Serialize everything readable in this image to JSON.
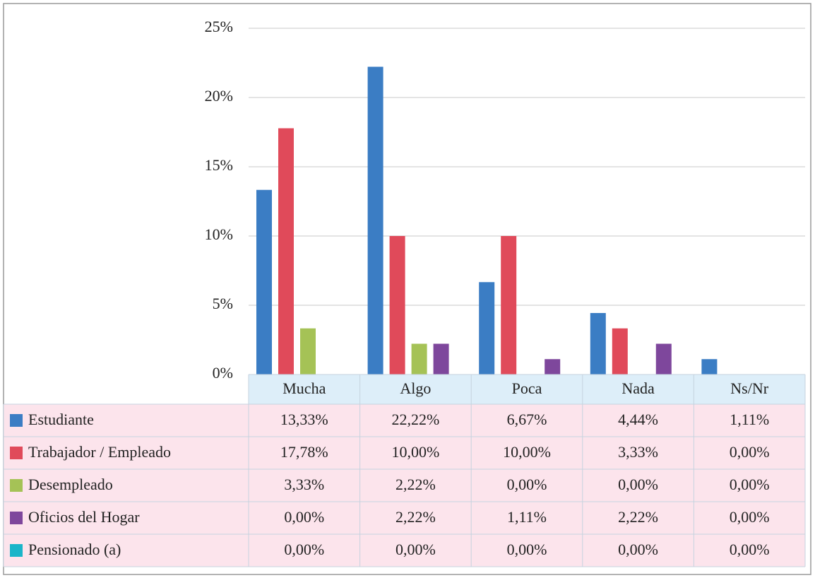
{
  "chart_data": {
    "type": "bar",
    "categories": [
      "Mucha",
      "Algo",
      "Poca",
      "Nada",
      "Ns/Nr"
    ],
    "series": [
      {
        "name": "Estudiante",
        "color": "#3b7dc4",
        "values": [
          13.33,
          22.22,
          6.67,
          4.44,
          1.11
        ],
        "value_labels": [
          "13,33%",
          "22,22%",
          "6,67%",
          "4,44%",
          "1,11%"
        ]
      },
      {
        "name": "Trabajador / Empleado",
        "color": "#e04a5a",
        "values": [
          17.78,
          10.0,
          10.0,
          3.33,
          0.0
        ],
        "value_labels": [
          "17,78%",
          "10,00%",
          "10,00%",
          "3,33%",
          "0,00%"
        ]
      },
      {
        "name": "Desempleado",
        "color": "#a5c256",
        "values": [
          3.33,
          2.22,
          0.0,
          0.0,
          0.0
        ],
        "value_labels": [
          "3,33%",
          "2,22%",
          "0,00%",
          "0,00%",
          "0,00%"
        ]
      },
      {
        "name": "Oficios del Hogar",
        "color": "#7e479c",
        "values": [
          0.0,
          2.22,
          1.11,
          2.22,
          0.0
        ],
        "value_labels": [
          "0,00%",
          "2,22%",
          "1,11%",
          "2,22%",
          "0,00%"
        ]
      },
      {
        "name": "Pensionado (a)",
        "color": "#1ab5c9",
        "values": [
          0.0,
          0.0,
          0.0,
          0.0,
          0.0
        ],
        "value_labels": [
          "0,00%",
          "0,00%",
          "0,00%",
          "0,00%",
          "0,00%"
        ]
      }
    ],
    "ylim": [
      0,
      25
    ],
    "yticks": [
      {
        "value": 0,
        "label": "0%"
      },
      {
        "value": 5,
        "label": "5%"
      },
      {
        "value": 10,
        "label": "10%"
      },
      {
        "value": 15,
        "label": "15%"
      },
      {
        "value": 20,
        "label": "20%"
      },
      {
        "value": 25,
        "label": "25%"
      }
    ],
    "grid": true
  }
}
